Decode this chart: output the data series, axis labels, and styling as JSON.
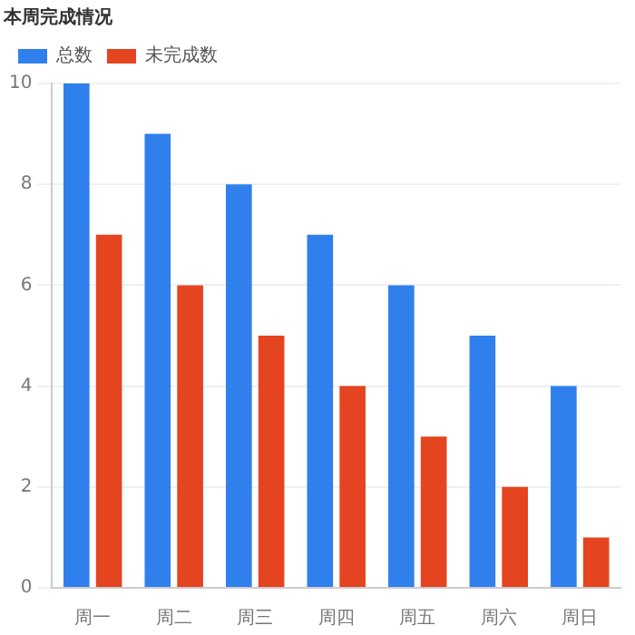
{
  "chart_data": {
    "type": "bar",
    "title": "本周完成情况",
    "categories": [
      "周一",
      "周二",
      "周三",
      "周四",
      "周五",
      "周六",
      "周日"
    ],
    "series": [
      {
        "name": "总数",
        "color": "#2f80ed",
        "values": [
          10,
          9,
          8,
          7,
          6,
          5,
          4
        ]
      },
      {
        "name": "未完成数",
        "color": "#e4441f",
        "values": [
          7,
          6,
          5,
          4,
          3,
          2,
          1
        ]
      }
    ],
    "ylim": [
      0,
      10
    ],
    "yticks": [
      0,
      2,
      4,
      6,
      8,
      10
    ],
    "grid": "y",
    "legend": "top"
  }
}
